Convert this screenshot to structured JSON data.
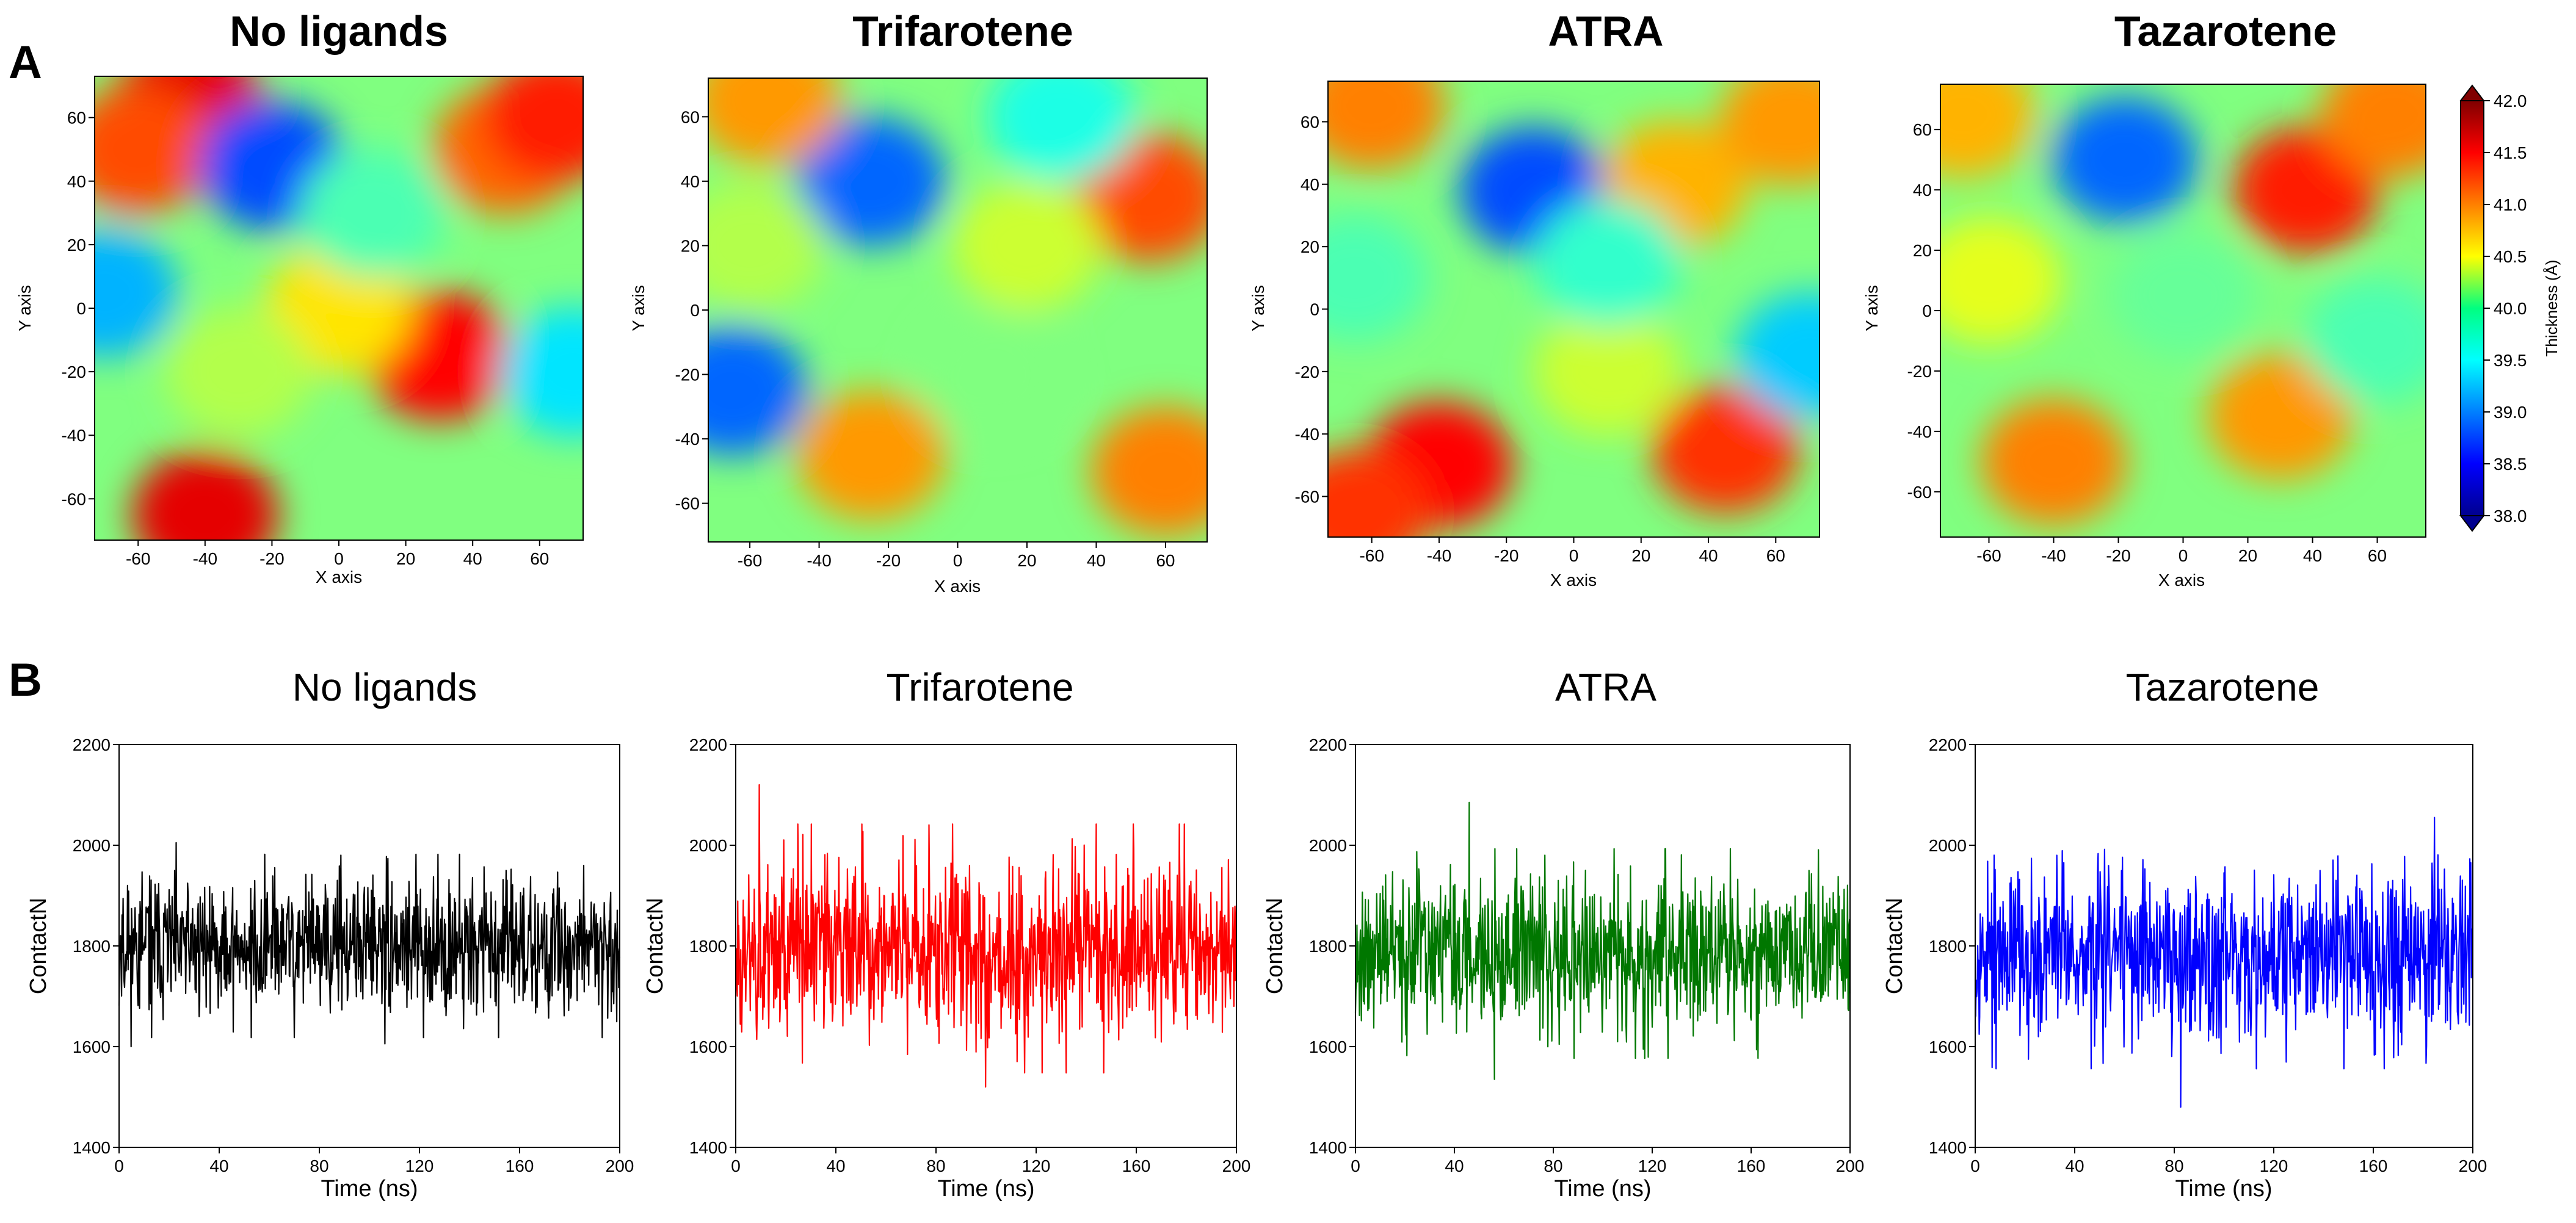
{
  "panel_labels": {
    "a": "A",
    "b": "B"
  },
  "colorbar": {
    "label": "Thickness (Å)",
    "ticks": [
      "42.0",
      "41.5",
      "41.0",
      "40.5",
      "40.0",
      "39.5",
      "39.0",
      "38.5",
      "38.0"
    ],
    "range": [
      38.0,
      42.0
    ]
  },
  "chart_data": [
    {
      "type": "heatmap",
      "title": "No ligands",
      "xlabel": "X axis",
      "ylabel": "Y axis",
      "xlim": [
        -73,
        73
      ],
      "ylim": [
        -73,
        73
      ],
      "xticks": [
        -60,
        -40,
        -20,
        0,
        20,
        40,
        60
      ],
      "yticks": [
        60,
        40,
        20,
        0,
        -20,
        -40,
        -60
      ],
      "value_range": [
        38.0,
        42.0
      ],
      "features": [
        {
          "x": -45,
          "y": 65,
          "value": 41.6
        },
        {
          "x": -60,
          "y": 50,
          "value": 41.2
        },
        {
          "x": -20,
          "y": 45,
          "value": 38.8
        },
        {
          "x": 30,
          "y": -15,
          "value": 41.5
        },
        {
          "x": 50,
          "y": 50,
          "value": 41.1
        },
        {
          "x": 65,
          "y": 60,
          "value": 41.4
        },
        {
          "x": -40,
          "y": -65,
          "value": 41.6
        },
        {
          "x": -70,
          "y": 5,
          "value": 39.2
        },
        {
          "x": 70,
          "y": -20,
          "value": 39.4
        },
        {
          "x": 0,
          "y": 0,
          "value": 40.6
        },
        {
          "x": -30,
          "y": -20,
          "value": 40.2
        },
        {
          "x": 10,
          "y": 30,
          "value": 39.8
        }
      ]
    },
    {
      "type": "heatmap",
      "title": "Trifarotene",
      "xlabel": "X axis",
      "ylabel": "Y axis",
      "xlim": [
        -72,
        72
      ],
      "ylim": [
        -72,
        72
      ],
      "xticks": [
        -60,
        -40,
        -20,
        0,
        20,
        40,
        60
      ],
      "yticks": [
        60,
        40,
        20,
        0,
        -20,
        -40,
        -60
      ],
      "value_range": [
        38.0,
        42.0
      ],
      "features": [
        {
          "x": -25,
          "y": 40,
          "value": 38.9
        },
        {
          "x": -65,
          "y": -25,
          "value": 38.9
        },
        {
          "x": 55,
          "y": 35,
          "value": 41.2
        },
        {
          "x": 60,
          "y": -50,
          "value": 41.0
        },
        {
          "x": -25,
          "y": -45,
          "value": 40.9
        },
        {
          "x": -55,
          "y": 65,
          "value": 40.9
        },
        {
          "x": 10,
          "y": -20,
          "value": 40.0
        },
        {
          "x": 20,
          "y": 20,
          "value": 40.3
        },
        {
          "x": -60,
          "y": 20,
          "value": 40.2
        },
        {
          "x": 30,
          "y": 60,
          "value": 39.6
        }
      ]
    },
    {
      "type": "heatmap",
      "title": "ATRA",
      "xlabel": "X axis",
      "ylabel": "Y axis",
      "xlim": [
        -73,
        73
      ],
      "ylim": [
        -73,
        73
      ],
      "xticks": [
        -60,
        -40,
        -20,
        0,
        20,
        40,
        60
      ],
      "yticks": [
        60,
        40,
        20,
        0,
        -20,
        -40,
        -60
      ],
      "value_range": [
        38.0,
        42.0
      ],
      "features": [
        {
          "x": -12,
          "y": 38,
          "value": 38.8
        },
        {
          "x": -40,
          "y": -50,
          "value": 41.5
        },
        {
          "x": -65,
          "y": -65,
          "value": 41.3
        },
        {
          "x": 45,
          "y": -45,
          "value": 41.3
        },
        {
          "x": 30,
          "y": 40,
          "value": 40.8
        },
        {
          "x": 65,
          "y": 60,
          "value": 40.9
        },
        {
          "x": -60,
          "y": 65,
          "value": 41.0
        },
        {
          "x": -65,
          "y": 10,
          "value": 39.8
        },
        {
          "x": 70,
          "y": -15,
          "value": 39.3
        },
        {
          "x": 10,
          "y": -20,
          "value": 40.3
        },
        {
          "x": 10,
          "y": 15,
          "value": 39.7
        }
      ]
    },
    {
      "type": "heatmap",
      "title": "Tazarotene",
      "xlabel": "X axis",
      "ylabel": "Y axis",
      "xlim": [
        -75,
        75
      ],
      "ylim": [
        -75,
        75
      ],
      "xticks": [
        -60,
        -40,
        -20,
        0,
        20,
        40,
        60
      ],
      "yticks": [
        60,
        40,
        20,
        0,
        -20,
        -40,
        -60
      ],
      "value_range": [
        38.0,
        42.0
      ],
      "features": [
        {
          "x": -18,
          "y": 50,
          "value": 38.9
        },
        {
          "x": 38,
          "y": 40,
          "value": 41.4
        },
        {
          "x": -40,
          "y": -50,
          "value": 41.0
        },
        {
          "x": 30,
          "y": -35,
          "value": 40.9
        },
        {
          "x": -60,
          "y": 10,
          "value": 40.4
        },
        {
          "x": -68,
          "y": 65,
          "value": 40.8
        },
        {
          "x": 60,
          "y": -10,
          "value": 39.8
        },
        {
          "x": 0,
          "y": 5,
          "value": 39.9
        },
        {
          "x": 65,
          "y": 65,
          "value": 41.0
        }
      ]
    },
    {
      "type": "line",
      "title": "No ligands",
      "xlabel": "Time (ns)",
      "ylabel": "ContactN",
      "xlim": [
        0,
        200
      ],
      "ylim": [
        1400,
        2200
      ],
      "xticks": [
        0,
        40,
        80,
        120,
        160,
        200
      ],
      "yticks": [
        2200,
        2000,
        1800,
        1600,
        1400
      ],
      "series": [
        {
          "name": "No ligands",
          "color": "#000000",
          "mean": 1800,
          "sd": 70,
          "min": 1600,
          "max": 2005,
          "seed": 11
        }
      ]
    },
    {
      "type": "line",
      "title": "Trifarotene",
      "xlabel": "Time (ns)",
      "ylabel": "ContactN",
      "xlim": [
        0,
        200
      ],
      "ylim": [
        1400,
        2200
      ],
      "xticks": [
        0,
        40,
        80,
        120,
        160,
        200
      ],
      "yticks": [
        2200,
        2000,
        1800,
        1600,
        1400
      ],
      "series": [
        {
          "name": "Trifarotene",
          "color": "#ff0000",
          "mean": 1795,
          "sd": 95,
          "min": 1520,
          "max": 2120,
          "seed": 23
        }
      ]
    },
    {
      "type": "line",
      "title": "ATRA",
      "xlabel": "Time (ns)",
      "ylabel": "ContactN",
      "xlim": [
        0,
        200
      ],
      "ylim": [
        1400,
        2200
      ],
      "xticks": [
        0,
        40,
        80,
        120,
        160,
        200
      ],
      "yticks": [
        2200,
        2000,
        1800,
        1600,
        1400
      ],
      "series": [
        {
          "name": "ATRA",
          "color": "#007700",
          "mean": 1785,
          "sd": 80,
          "min": 1535,
          "max": 2085,
          "seed": 37
        }
      ]
    },
    {
      "type": "line",
      "title": "Tazarotene",
      "xlabel": "Time (ns)",
      "ylabel": "ContactN",
      "xlim": [
        0,
        200
      ],
      "ylim": [
        1400,
        2200
      ],
      "xticks": [
        0,
        40,
        80,
        120,
        160,
        200
      ],
      "yticks": [
        2200,
        2000,
        1800,
        1600,
        1400
      ],
      "series": [
        {
          "name": "Tazarotene",
          "color": "#0000ff",
          "mean": 1790,
          "sd": 90,
          "min": 1480,
          "max": 2055,
          "seed": 53
        }
      ]
    }
  ]
}
